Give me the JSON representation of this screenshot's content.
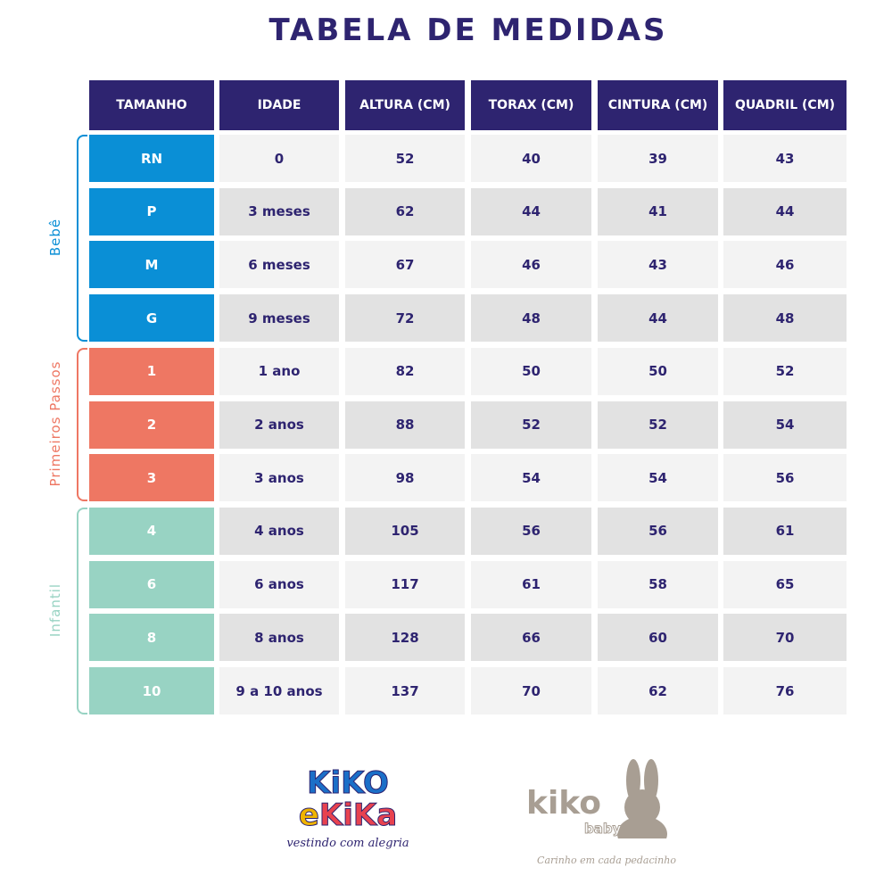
{
  "title": "TABELA DE MEDIDAS",
  "headers": [
    "TAMANHO",
    "IDADE",
    "ALTURA (CM)",
    "TORAX (CM)",
    "CINTURA (CM)",
    "QUADRIL (CM)"
  ],
  "groups": [
    {
      "label": "Bebê",
      "color": "#0a8fd6",
      "rows": [
        0,
        3
      ]
    },
    {
      "label": "Primeiros Passos",
      "color": "#ee7763",
      "rows": [
        4,
        6
      ]
    },
    {
      "label": "Infantil",
      "color": "#98d3c3",
      "rows": [
        7,
        10
      ]
    }
  ],
  "rows": [
    [
      "RN",
      "0",
      "52",
      "40",
      "39",
      "43"
    ],
    [
      "P",
      "3 meses",
      "62",
      "44",
      "41",
      "44"
    ],
    [
      "M",
      "6 meses",
      "67",
      "46",
      "43",
      "46"
    ],
    [
      "G",
      "9 meses",
      "72",
      "48",
      "44",
      "48"
    ],
    [
      "1",
      "1 ano",
      "82",
      "50",
      "50",
      "52"
    ],
    [
      "2",
      "2 anos",
      "88",
      "52",
      "52",
      "54"
    ],
    [
      "3",
      "3 anos",
      "98",
      "54",
      "54",
      "56"
    ],
    [
      "4",
      "4 anos",
      "105",
      "56",
      "56",
      "61"
    ],
    [
      "6",
      "6 anos",
      "117",
      "61",
      "58",
      "65"
    ],
    [
      "8",
      "8 anos",
      "128",
      "66",
      "60",
      "70"
    ],
    [
      "10",
      "9 a 10 anos",
      "137",
      "70",
      "62",
      "76"
    ]
  ],
  "logos": {
    "kikoekika": {
      "name": "KiKO e KiKa",
      "tagline": "vestindo com alegria"
    },
    "kikobaby": {
      "name": "kiko",
      "sub": "baby",
      "tagline": "Carinho em cada pedacinho"
    }
  }
}
